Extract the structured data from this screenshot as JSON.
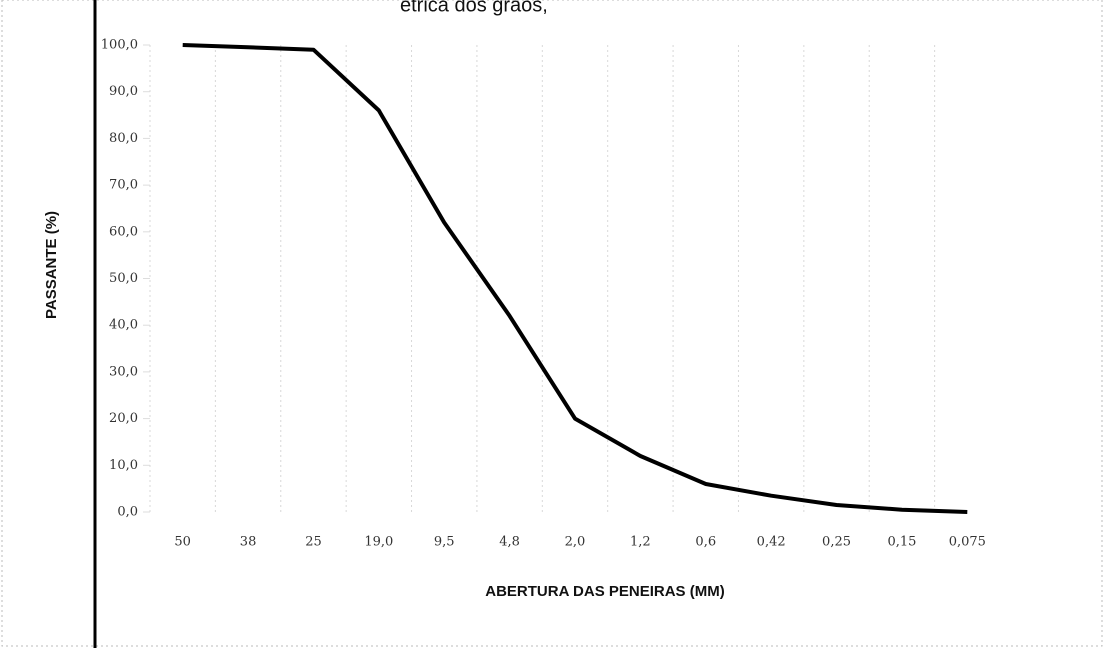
{
  "chart_data": {
    "type": "line",
    "title": "étrica dos grãos,",
    "x_label": "ABERTURA DAS PENEIRAS (MM)",
    "y_label": "PASSANTE (%)",
    "categories": [
      "50",
      "38",
      "25",
      "19,0",
      "9,5",
      "4,8",
      "2,0",
      "1,2",
      "0,6",
      "0,42",
      "0,25",
      "0,15",
      "0,075"
    ],
    "series": [
      {
        "name": "PASSANTE (%)",
        "color": "#000000",
        "values": [
          100,
          99.5,
          99,
          86,
          62,
          42,
          20,
          12,
          6,
          3.5,
          1.5,
          0.5,
          0
        ]
      }
    ],
    "ylim": [
      0,
      100
    ],
    "yticks": [
      {
        "value": 0,
        "label": "0,0"
      },
      {
        "value": 10,
        "label": "10,0"
      },
      {
        "value": 20,
        "label": "20,0"
      },
      {
        "value": 30,
        "label": "30,0"
      },
      {
        "value": 40,
        "label": "40,0"
      },
      {
        "value": 50,
        "label": "50,0"
      },
      {
        "value": 60,
        "label": "60,0"
      },
      {
        "value": 70,
        "label": "70,0"
      },
      {
        "value": 80,
        "label": "80,0"
      },
      {
        "value": 90,
        "label": "90,0"
      },
      {
        "value": 100,
        "label": "100,0"
      }
    ],
    "grid": true
  }
}
